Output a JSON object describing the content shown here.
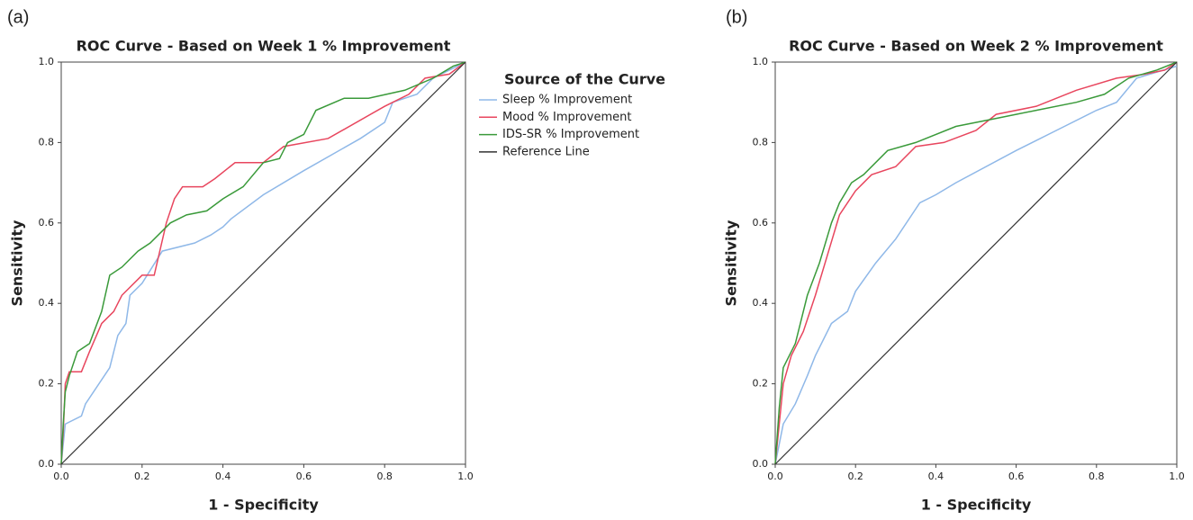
{
  "chart_data": [
    {
      "type": "line",
      "panel_label": "(a)",
      "title": "ROC Curve - Based on Week 1 % Improvement",
      "xlabel": "1 - Specificity",
      "ylabel": "Sensitivity",
      "legend_title": "Source of the Curve",
      "xlim": [
        0,
        1
      ],
      "ylim": [
        0,
        1
      ],
      "xticks": [
        {
          "value": 0,
          "label": "0.0"
        },
        0.2,
        0.4,
        0.6,
        0.8,
        {
          "value": 1,
          "label": "1.0"
        }
      ],
      "yticks": [
        {
          "value": 0,
          "label": "0.0"
        },
        0.2,
        0.4,
        0.6,
        0.8,
        {
          "value": 1,
          "label": "1.0"
        }
      ],
      "series": [
        {
          "name": "Sleep % Improvement",
          "color": "#8fb8e8",
          "x": [
            0,
            0.01,
            0.05,
            0.06,
            0.12,
            0.14,
            0.16,
            0.17,
            0.2,
            0.25,
            0.33,
            0.37,
            0.4,
            0.42,
            0.5,
            0.6,
            0.74,
            0.8,
            0.82,
            0.88,
            0.92,
            1
          ],
          "values": [
            0,
            0.1,
            0.12,
            0.15,
            0.24,
            0.32,
            0.35,
            0.42,
            0.45,
            0.53,
            0.55,
            0.57,
            0.59,
            0.61,
            0.67,
            0.73,
            0.81,
            0.85,
            0.9,
            0.92,
            0.96,
            1
          ]
        },
        {
          "name": "Mood % Improvement",
          "color": "#e8465e",
          "x": [
            0,
            0.005,
            0.01,
            0.02,
            0.05,
            0.07,
            0.1,
            0.13,
            0.15,
            0.2,
            0.23,
            0.26,
            0.28,
            0.3,
            0.35,
            0.38,
            0.43,
            0.5,
            0.55,
            0.66,
            0.8,
            0.86,
            0.9,
            0.96,
            1
          ],
          "values": [
            0,
            0.08,
            0.2,
            0.23,
            0.23,
            0.28,
            0.35,
            0.38,
            0.42,
            0.47,
            0.47,
            0.6,
            0.66,
            0.69,
            0.69,
            0.71,
            0.75,
            0.75,
            0.79,
            0.81,
            0.89,
            0.92,
            0.96,
            0.97,
            1
          ]
        },
        {
          "name": "IDS-SR % Improvement",
          "color": "#3a9a3a",
          "x": [
            0,
            0.005,
            0.01,
            0.02,
            0.04,
            0.07,
            0.1,
            0.12,
            0.15,
            0.19,
            0.22,
            0.27,
            0.31,
            0.36,
            0.4,
            0.45,
            0.5,
            0.54,
            0.56,
            0.6,
            0.63,
            0.7,
            0.76,
            0.85,
            0.92,
            0.97,
            1
          ],
          "values": [
            0,
            0.1,
            0.18,
            0.22,
            0.28,
            0.3,
            0.38,
            0.47,
            0.49,
            0.53,
            0.55,
            0.6,
            0.62,
            0.63,
            0.66,
            0.69,
            0.75,
            0.76,
            0.8,
            0.82,
            0.88,
            0.91,
            0.91,
            0.93,
            0.96,
            0.99,
            1
          ]
        },
        {
          "name": "Reference Line",
          "color": "#333333",
          "x": [
            0,
            1
          ],
          "values": [
            0,
            1
          ]
        }
      ]
    },
    {
      "type": "line",
      "panel_label": "(b)",
      "title": "ROC Curve - Based on Week 2 % Improvement",
      "xlabel": "1 - Specificity",
      "ylabel": "Sensitivity",
      "xlim": [
        0,
        1
      ],
      "ylim": [
        0,
        1
      ],
      "xticks": [
        {
          "value": 0,
          "label": "0.0"
        },
        0.2,
        0.4,
        0.6,
        0.8,
        {
          "value": 1,
          "label": "1.0"
        }
      ],
      "yticks": [
        {
          "value": 0,
          "label": "0.0"
        },
        0.2,
        0.4,
        0.6,
        0.8,
        {
          "value": 1,
          "label": "1.0"
        }
      ],
      "series": [
        {
          "color": "#8fb8e8",
          "x": [
            0,
            0.02,
            0.05,
            0.08,
            0.1,
            0.14,
            0.18,
            0.2,
            0.25,
            0.3,
            0.36,
            0.4,
            0.45,
            0.6,
            0.7,
            0.8,
            0.85,
            0.9,
            1
          ],
          "values": [
            0,
            0.1,
            0.15,
            0.22,
            0.27,
            0.35,
            0.38,
            0.43,
            0.5,
            0.56,
            0.65,
            0.67,
            0.7,
            0.78,
            0.83,
            0.88,
            0.9,
            0.96,
            0.99
          ]
        },
        {
          "color": "#e8465e",
          "x": [
            0,
            0.01,
            0.02,
            0.04,
            0.07,
            0.1,
            0.13,
            0.16,
            0.2,
            0.24,
            0.3,
            0.35,
            0.42,
            0.5,
            0.55,
            0.65,
            0.75,
            0.85,
            0.92,
            0.97,
            1
          ],
          "values": [
            0,
            0.1,
            0.2,
            0.27,
            0.33,
            0.42,
            0.52,
            0.62,
            0.68,
            0.72,
            0.74,
            0.79,
            0.8,
            0.83,
            0.87,
            0.89,
            0.93,
            0.96,
            0.97,
            0.98,
            1
          ]
        },
        {
          "color": "#3a9a3a",
          "x": [
            0,
            0.01,
            0.02,
            0.05,
            0.08,
            0.11,
            0.14,
            0.16,
            0.19,
            0.22,
            0.28,
            0.35,
            0.45,
            0.55,
            0.65,
            0.75,
            0.82,
            0.88,
            0.95,
            1
          ],
          "values": [
            0,
            0.14,
            0.24,
            0.3,
            0.42,
            0.5,
            0.6,
            0.65,
            0.7,
            0.72,
            0.78,
            0.8,
            0.84,
            0.86,
            0.88,
            0.9,
            0.92,
            0.96,
            0.98,
            1
          ]
        },
        {
          "color": "#333333",
          "x": [
            0,
            1
          ],
          "values": [
            0,
            1
          ]
        }
      ]
    }
  ]
}
